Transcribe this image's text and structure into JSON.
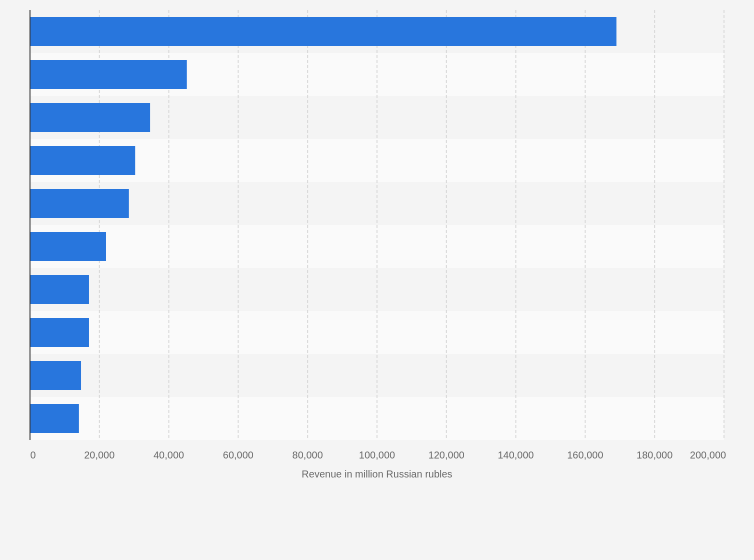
{
  "chart_data": {
    "type": "hbar",
    "x_label": "Revenue in million Russian rubles",
    "categories": [
      null,
      null,
      null,
      null,
      null,
      null,
      null,
      null,
      null,
      null
    ],
    "values": [
      169000,
      45200,
      34600,
      30300,
      28500,
      21900,
      17000,
      17000,
      14700,
      14100
    ],
    "color": "#2876dd",
    "xlim": [
      0,
      200000
    ],
    "xticks": [
      0,
      {
        "value": 20000,
        "label": "20,000"
      },
      {
        "value": 40000,
        "label": "40,000"
      },
      {
        "value": 60000,
        "label": "60,000"
      },
      {
        "value": 80000,
        "label": "80,000"
      },
      {
        "value": 100000,
        "label": "100,000"
      },
      {
        "value": 120000,
        "label": "120,000"
      },
      {
        "value": 140000,
        "label": "140,000"
      },
      {
        "value": 160000,
        "label": "160,000"
      },
      {
        "value": 180000,
        "label": "180,000"
      },
      {
        "value": 200000,
        "label": "200,000"
      }
    ],
    "grid": true
  }
}
